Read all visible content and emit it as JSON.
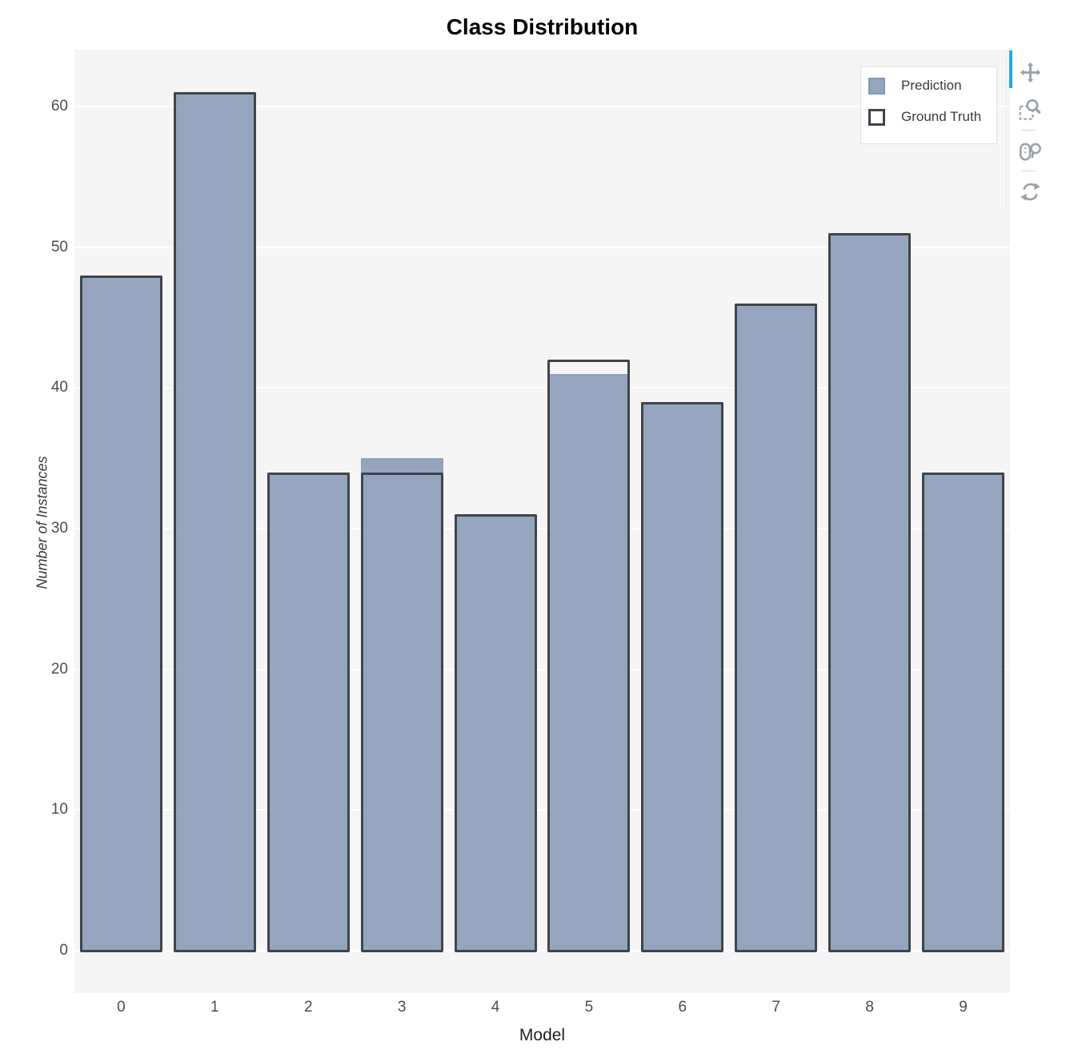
{
  "chart_data": {
    "type": "bar",
    "title": "Class Distribution",
    "xlabel": "Model",
    "ylabel": "Number of Instances",
    "categories": [
      "0",
      "1",
      "2",
      "3",
      "4",
      "5",
      "6",
      "7",
      "8",
      "9"
    ],
    "series": [
      {
        "name": "Prediction",
        "values": [
          48,
          61,
          34,
          35,
          31,
          41,
          39,
          46,
          51,
          34
        ]
      },
      {
        "name": "Ground Truth",
        "values": [
          48,
          61,
          34,
          34,
          31,
          42,
          39,
          46,
          51,
          34
        ]
      }
    ],
    "yticks": [
      0,
      10,
      20,
      30,
      40,
      50,
      60
    ],
    "ylim": [
      -3,
      64
    ],
    "grid": true,
    "legend_position": "top-right",
    "colors": {
      "prediction_fill": "rgba(126,145,176,0.8)",
      "prediction_fill_solid": "#96a5be",
      "prediction_border": "#8fa1c1",
      "ground_truth_border": "#3f444d",
      "plot_background": "#f5f5f5",
      "gridline": "#ffffff",
      "tick_label": "#4d4d4d",
      "axis_label": "#1f1f1f",
      "title": "#000000",
      "toolbar_icon": "#9aa0a6",
      "active_tool_indicator": "#26aae1"
    }
  },
  "legend": {
    "items": [
      {
        "label": "Prediction",
        "swatch": "filled"
      },
      {
        "label": "Ground Truth",
        "swatch": "outline"
      }
    ]
  },
  "toolbar": {
    "tools": [
      {
        "name": "pan",
        "active": true
      },
      {
        "name": "box-zoom",
        "active": false
      },
      {
        "name": "wheel-zoom",
        "active": false
      },
      {
        "name": "reset",
        "active": false
      }
    ]
  }
}
